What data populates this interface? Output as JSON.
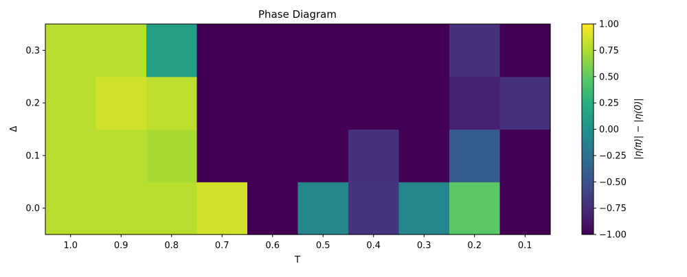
{
  "chart_data": {
    "type": "heatmap",
    "title": "Phase Diagram",
    "xlabel": "T",
    "ylabel": "Δ",
    "x_categories": [
      "1.0",
      "0.9",
      "0.8",
      "0.7",
      "0.6",
      "0.5",
      "0.4",
      "0.3",
      "0.2",
      "0.1"
    ],
    "y_categories": [
      "0.0",
      "0.1",
      "0.2",
      "0.3"
    ],
    "values": [
      [
        0.78,
        0.78,
        0.78,
        0.86,
        -1.0,
        -0.1,
        -0.7,
        -0.1,
        0.48,
        -1.0
      ],
      [
        0.78,
        0.78,
        0.74,
        -1.0,
        -1.0,
        -1.0,
        -0.72,
        -1.0,
        -0.42,
        -1.0
      ],
      [
        0.78,
        0.86,
        0.8,
        -1.0,
        -1.0,
        -1.0,
        -1.0,
        -1.0,
        -0.82,
        -0.72
      ],
      [
        0.78,
        0.78,
        0.12,
        -1.0,
        -1.0,
        -1.0,
        -1.0,
        -1.0,
        -0.72,
        -1.0
      ]
    ],
    "colorbar": {
      "label": "|η(π)| − |η(0)|",
      "range": [
        -1.0,
        1.0
      ],
      "ticks": [
        "1.00",
        "0.75",
        "0.50",
        "0.25",
        "0.00",
        "−0.25",
        "−0.50",
        "−0.75",
        "−1.00"
      ],
      "colormap": "viridis"
    }
  }
}
